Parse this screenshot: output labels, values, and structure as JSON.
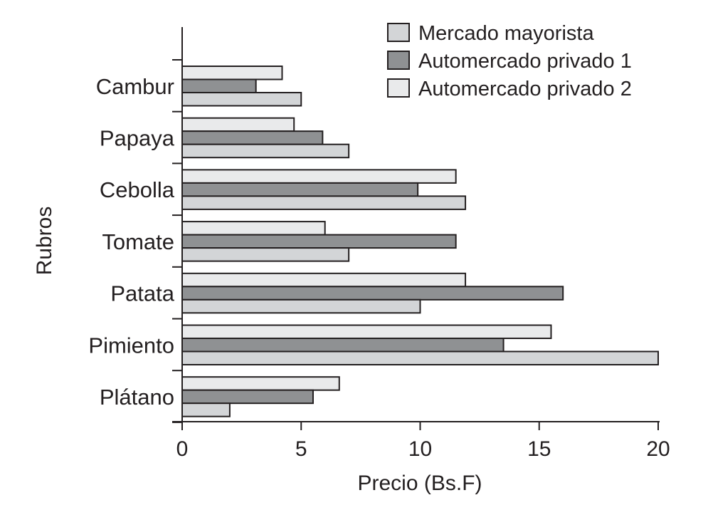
{
  "chart_data": {
    "type": "bar",
    "orientation": "horizontal",
    "categories": [
      "Cambur",
      "Papaya",
      "Cebolla",
      "Tomate",
      "Patata",
      "Pimiento",
      "Plátano"
    ],
    "series": [
      {
        "name": "Mercado mayorista",
        "color": "#d3d5d7",
        "values": [
          5.0,
          7.0,
          11.9,
          7.0,
          10.0,
          20.0,
          2.0
        ]
      },
      {
        "name": "Automercado privado 1",
        "color": "#8f9193",
        "values": [
          3.1,
          5.9,
          9.9,
          11.5,
          16.0,
          13.5,
          5.5
        ]
      },
      {
        "name": "Automercado privado 2",
        "color": "#e9eaeb",
        "values": [
          4.2,
          4.7,
          11.5,
          6.0,
          11.9,
          15.5,
          6.6
        ]
      }
    ],
    "xlabel": "Precio (Bs.F)",
    "ylabel": "Rubros",
    "xlim": [
      0,
      20
    ],
    "xticks": [
      "0",
      "5",
      "10",
      "15",
      "20"
    ],
    "legend_position": "top-right",
    "grid": false
  }
}
